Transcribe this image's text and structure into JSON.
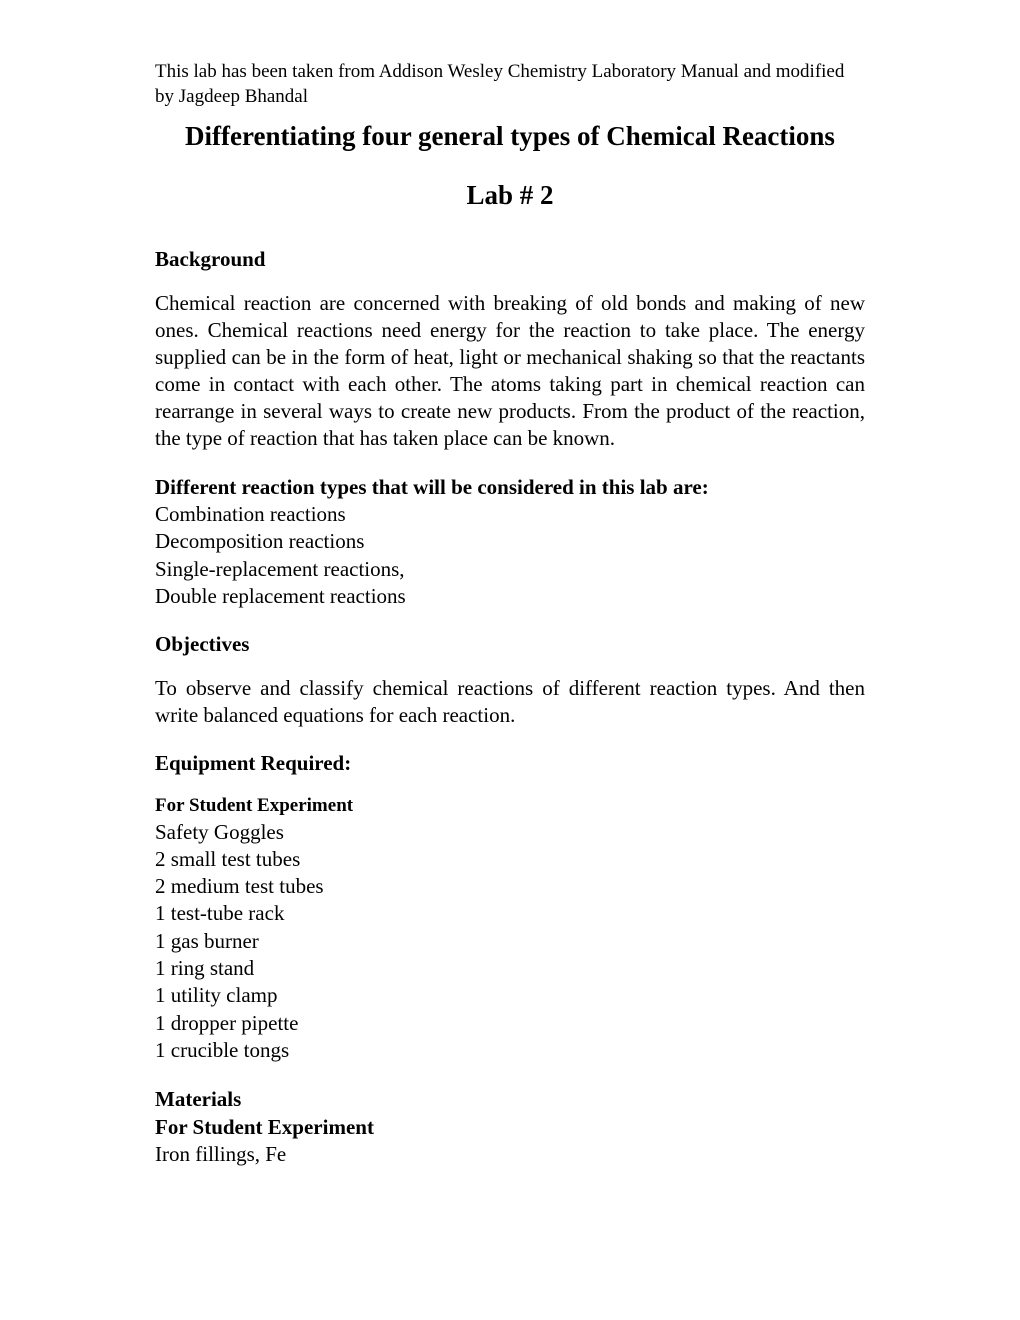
{
  "header_note": "This lab has been taken from Addison Wesley Chemistry Laboratory Manual and modified by Jagdeep Bhandal",
  "title": "Differentiating four general types of Chemical Reactions",
  "lab_number": "Lab # 2",
  "background_heading": "Background",
  "background_text": "Chemical reaction are concerned with breaking of old bonds and making of new ones. Chemical reactions need energy for the reaction to take place. The energy supplied can be in the form of heat, light or mechanical shaking so that the reactants come in contact with each other.  The atoms taking part in chemical reaction can rearrange in several ways to create new products.  From the product of the reaction, the type of reaction that has taken place can be known.",
  "reaction_types_heading": "Different reaction types that will be considered in this lab are:",
  "reaction_types": [
    "Combination reactions",
    "Decomposition reactions",
    "Single-replacement reactions,",
    "Double replacement reactions"
  ],
  "objectives_heading": "Objectives",
  "objectives_text": "To observe and classify chemical reactions of different reaction types. And then write balanced equations for each reaction.",
  "equipment_heading": "Equipment Required:",
  "equipment_sub_heading": "For Student Experiment",
  "equipment_list": [
    "Safety Goggles",
    "2 small test tubes",
    "2 medium test tubes",
    "1 test-tube rack",
    "1 gas burner",
    "1 ring stand",
    "1 utility clamp",
    "1 dropper pipette",
    "1 crucible tongs"
  ],
  "materials_heading": "Materials",
  "materials_sub_heading": "For Student Experiment",
  "materials_list": [
    "Iron fillings, Fe"
  ],
  "colors": {
    "background": "#ffffff",
    "text": "#000000"
  },
  "typography": {
    "font_family": "Times New Roman",
    "header_note_size": 19,
    "title_size": 27,
    "body_size": 21,
    "sub_heading_small_size": 19
  }
}
